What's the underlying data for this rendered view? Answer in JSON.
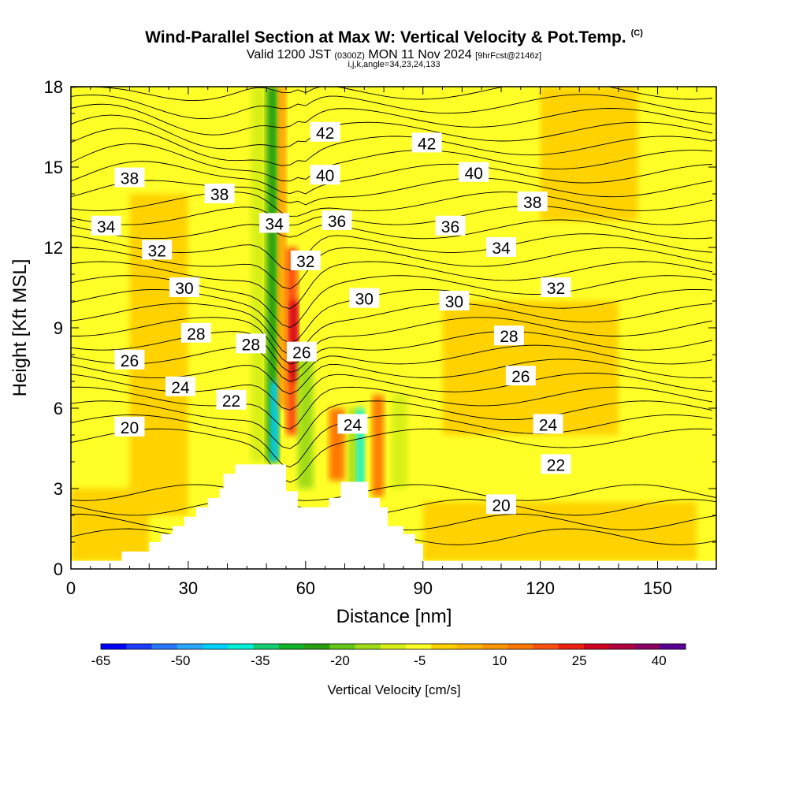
{
  "titles": {
    "main": "Wind-Parallel Section at Max W: Vertical Velocity & Pot.Temp.",
    "main_suffix": "(C)",
    "valid_prefix": "Valid 1200 JST",
    "valid_zulu": "(0300Z)",
    "valid_date": "MON 11 Nov 2024",
    "valid_fcst": "[9hrFcst@2146z]",
    "indices": "i,j,k,angle=34,23,24,133"
  },
  "chart_data": {
    "type": "heatmap",
    "title": "Wind-Parallel Section at Max W: Vertical Velocity & Pot.Temp.",
    "xlabel": "Distance [nm]",
    "ylabel": "Height [Kft MSL]",
    "xlim": [
      0,
      165
    ],
    "ylim": [
      0,
      18
    ],
    "x_ticks": [
      0,
      30,
      60,
      90,
      120,
      150
    ],
    "y_ticks": [
      0,
      3,
      6,
      9,
      12,
      15,
      18
    ],
    "terrain": [
      [
        0,
        0.3
      ],
      [
        13,
        0.3
      ],
      [
        13,
        0.65
      ],
      [
        20,
        0.65
      ],
      [
        20,
        1.0
      ],
      [
        23,
        1.0
      ],
      [
        23,
        1.3
      ],
      [
        26,
        1.3
      ],
      [
        26,
        1.6
      ],
      [
        29,
        1.6
      ],
      [
        29,
        1.95
      ],
      [
        32,
        1.95
      ],
      [
        32,
        2.3
      ],
      [
        35,
        2.3
      ],
      [
        35,
        2.65
      ],
      [
        38,
        2.65
      ],
      [
        38,
        3.0
      ],
      [
        39,
        3.0
      ],
      [
        39,
        3.55
      ],
      [
        42,
        3.55
      ],
      [
        42,
        3.9
      ],
      [
        55,
        3.9
      ],
      [
        55,
        2.9
      ],
      [
        58,
        2.9
      ],
      [
        58,
        2.3
      ],
      [
        66,
        2.3
      ],
      [
        66,
        2.65
      ],
      [
        69,
        2.65
      ],
      [
        69,
        3.25
      ],
      [
        76,
        3.25
      ],
      [
        76,
        2.65
      ],
      [
        79,
        2.65
      ],
      [
        79,
        2.3
      ],
      [
        81,
        2.3
      ],
      [
        81,
        1.6
      ],
      [
        85,
        1.6
      ],
      [
        85,
        1.3
      ],
      [
        88,
        1.3
      ],
      [
        88,
        0.95
      ],
      [
        90,
        0.95
      ],
      [
        90,
        0.3
      ],
      [
        165,
        0.3
      ]
    ],
    "w_cells": [
      {
        "x0": 0,
        "x1": 165,
        "y0": 0,
        "y1": 18,
        "w": -2
      },
      {
        "x0": 15,
        "x1": 30,
        "y0": 2,
        "y1": 14,
        "w": 2
      },
      {
        "x0": 95,
        "x1": 140,
        "y0": 5,
        "y1": 10,
        "w": 3
      },
      {
        "x0": 120,
        "x1": 145,
        "y0": 13,
        "y1": 18,
        "w": 3
      },
      {
        "x0": 0,
        "x1": 20,
        "y0": 0.3,
        "y1": 3,
        "w": 3
      },
      {
        "x0": 90,
        "x1": 160,
        "y0": 0.3,
        "y1": 2.5,
        "w": 3
      },
      {
        "x0": 60,
        "x1": 72,
        "y0": 9,
        "y1": 15,
        "w": -5
      },
      {
        "x0": 46,
        "x1": 50,
        "y0": 4,
        "y1": 18,
        "w": -8
      },
      {
        "x0": 50,
        "x1": 53,
        "y0": 4,
        "y1": 18,
        "w": -22
      },
      {
        "x0": 51,
        "x1": 53,
        "y0": 4,
        "y1": 7,
        "w": -45
      },
      {
        "x0": 53,
        "x1": 55,
        "y0": 6,
        "y1": 18,
        "w": 10
      },
      {
        "x0": 55,
        "x1": 58,
        "y0": 5,
        "y1": 12,
        "w": 20
      },
      {
        "x0": 56,
        "x1": 58,
        "y0": 7,
        "y1": 10,
        "w": 30
      },
      {
        "x0": 58,
        "x1": 62,
        "y0": 3,
        "y1": 8,
        "w": -12
      },
      {
        "x0": 66,
        "x1": 70,
        "y0": 3.3,
        "y1": 6,
        "w": 18
      },
      {
        "x0": 71,
        "x1": 73,
        "y0": 2.7,
        "y1": 6,
        "w": -15
      },
      {
        "x0": 73,
        "x1": 75,
        "y0": 2.7,
        "y1": 6,
        "w": -40
      },
      {
        "x0": 77,
        "x1": 80,
        "y0": 2.7,
        "y1": 6.5,
        "w": 18
      },
      {
        "x0": 82,
        "x1": 86,
        "y0": 3,
        "y1": 6.5,
        "w": -10
      }
    ],
    "theta_levels": [
      {
        "theta": 20,
        "label_x": 110,
        "label_y": 2.4
      },
      {
        "theta": 22,
        "label_x": 124,
        "label_y": 3.9
      },
      {
        "theta": 24,
        "label_x": 122,
        "label_y": 5.3
      },
      {
        "theta": 26,
        "label_x": 115,
        "label_y": 7.2
      },
      {
        "theta": 28,
        "label_x": 112,
        "label_y": 8.7
      },
      {
        "theta": 30,
        "label_x": 98,
        "label_y": 10.0
      },
      {
        "theta": 32,
        "label_x": 124,
        "label_y": 10.5
      },
      {
        "theta": 34,
        "label_x": 110,
        "label_y": 12.0
      },
      {
        "theta": 36,
        "label_x": 97,
        "label_y": 12.8
      },
      {
        "theta": 38,
        "label_x": 118,
        "label_y": 13.7
      },
      {
        "theta": 40,
        "label_x": 103,
        "label_y": 14.8
      },
      {
        "theta": 42,
        "label_x": 91,
        "label_y": 15.9
      }
    ],
    "theta_labels": [
      {
        "text": "42",
        "x": 65,
        "y": 16.3
      },
      {
        "text": "42",
        "x": 91,
        "y": 15.9
      },
      {
        "text": "38",
        "x": 15,
        "y": 14.6
      },
      {
        "text": "40",
        "x": 65,
        "y": 14.7
      },
      {
        "text": "40",
        "x": 103,
        "y": 14.8
      },
      {
        "text": "38",
        "x": 38,
        "y": 14.0
      },
      {
        "text": "38",
        "x": 118,
        "y": 13.7
      },
      {
        "text": "34",
        "x": 9,
        "y": 12.8
      },
      {
        "text": "34",
        "x": 52,
        "y": 12.9
      },
      {
        "text": "36",
        "x": 68,
        "y": 13.0
      },
      {
        "text": "36",
        "x": 97,
        "y": 12.8
      },
      {
        "text": "32",
        "x": 22,
        "y": 11.9
      },
      {
        "text": "34",
        "x": 110,
        "y": 12.0
      },
      {
        "text": "32",
        "x": 60,
        "y": 11.5
      },
      {
        "text": "30",
        "x": 29,
        "y": 10.5
      },
      {
        "text": "30",
        "x": 75,
        "y": 10.1
      },
      {
        "text": "30",
        "x": 98,
        "y": 10.0
      },
      {
        "text": "32",
        "x": 124,
        "y": 10.5
      },
      {
        "text": "28",
        "x": 32,
        "y": 8.8
      },
      {
        "text": "28",
        "x": 46,
        "y": 8.4
      },
      {
        "text": "26",
        "x": 59,
        "y": 8.1
      },
      {
        "text": "28",
        "x": 112,
        "y": 8.7
      },
      {
        "text": "26",
        "x": 15,
        "y": 7.8
      },
      {
        "text": "24",
        "x": 28,
        "y": 6.8
      },
      {
        "text": "26",
        "x": 115,
        "y": 7.2
      },
      {
        "text": "22",
        "x": 41,
        "y": 6.3
      },
      {
        "text": "24",
        "x": 72,
        "y": 5.4
      },
      {
        "text": "24",
        "x": 122,
        "y": 5.4
      },
      {
        "text": "20",
        "x": 15,
        "y": 5.3
      },
      {
        "text": "22",
        "x": 124,
        "y": 3.9
      },
      {
        "text": "20",
        "x": 110,
        "y": 2.4
      }
    ],
    "colorbar": {
      "label": "Vertical Velocity [cm/s]",
      "ticks": [
        -65,
        -50,
        -35,
        -20,
        -5,
        10,
        25,
        40
      ],
      "levels": [
        -65,
        -60,
        -55,
        -50,
        -45,
        -40,
        -35,
        -30,
        -25,
        -20,
        -15,
        -10,
        -5,
        0,
        5,
        10,
        15,
        20,
        25,
        30,
        35,
        40,
        45
      ],
      "colors": [
        "#0000ff",
        "#1a3cff",
        "#2878ff",
        "#28a8ff",
        "#00d0ff",
        "#00f0d8",
        "#14d070",
        "#10b428",
        "#28a010",
        "#64c814",
        "#a0dc14",
        "#d8f014",
        "#ffff28",
        "#ffd200",
        "#ffb400",
        "#ff9600",
        "#ff7800",
        "#ff5010",
        "#f02010",
        "#d00020",
        "#b00040",
        "#8c0064",
        "#5a0096"
      ]
    }
  }
}
